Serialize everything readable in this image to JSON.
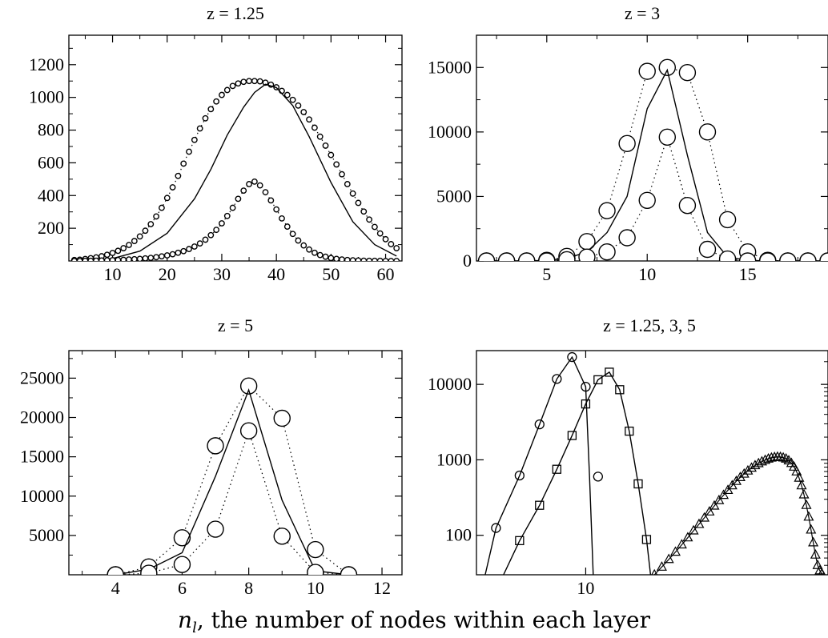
{
  "figure": {
    "xlabel_prefix": "n",
    "xlabel_sub": "l",
    "xlabel_rest": ", the number of nodes within each layer"
  },
  "chart_data": [
    {
      "type": "scatter",
      "title": "z = 1.25",
      "xlim": [
        2,
        63
      ],
      "ylim": [
        0,
        1380
      ],
      "xticks": [
        10,
        20,
        30,
        40,
        50,
        60
      ],
      "yticks": [
        200,
        400,
        600,
        800,
        1000,
        1200
      ],
      "yscale": "linear",
      "series": [
        {
          "style": "dotted-circles",
          "x": [
            3,
            4,
            5,
            6,
            7,
            8,
            9,
            10,
            11,
            12,
            13,
            14,
            15,
            16,
            17,
            18,
            19,
            20,
            21,
            22,
            23,
            24,
            25,
            26,
            27,
            28,
            29,
            30,
            31,
            32,
            33,
            34,
            35,
            36,
            37,
            38,
            39,
            40,
            41,
            42,
            43,
            44,
            45,
            46,
            47,
            48,
            49,
            50,
            51,
            52,
            53,
            54,
            55,
            56,
            57,
            58,
            59,
            60,
            61,
            62
          ],
          "y": [
            6,
            8,
            12,
            17,
            22,
            29,
            38,
            49,
            62,
            78,
            98,
            122,
            150,
            185,
            225,
            272,
            325,
            385,
            450,
            520,
            595,
            668,
            740,
            810,
            872,
            928,
            975,
            1015,
            1045,
            1070,
            1085,
            1095,
            1100,
            1100,
            1098,
            1090,
            1078,
            1062,
            1040,
            1015,
            985,
            950,
            910,
            865,
            815,
            760,
            705,
            648,
            590,
            530,
            470,
            412,
            355,
            302,
            253,
            208,
            168,
            133,
            103,
            78
          ]
        },
        {
          "style": "solid-line",
          "x": [
            3,
            6,
            10,
            15,
            20,
            25,
            28,
            31,
            34,
            36,
            38,
            40,
            43,
            46,
            50,
            54,
            58,
            62
          ],
          "y": [
            0,
            3,
            15,
            60,
            170,
            380,
            560,
            770,
            940,
            1030,
            1080,
            1060,
            950,
            760,
            480,
            240,
            100,
            30
          ]
        },
        {
          "style": "dotted-circles",
          "x": [
            3,
            4,
            5,
            6,
            7,
            8,
            9,
            10,
            11,
            12,
            13,
            14,
            15,
            16,
            17,
            18,
            19,
            20,
            21,
            22,
            23,
            24,
            25,
            26,
            27,
            28,
            29,
            30,
            31,
            32,
            33,
            34,
            35,
            36,
            37,
            38,
            39,
            40,
            41,
            42,
            43,
            44,
            45,
            46,
            47,
            48,
            49,
            50,
            51,
            52,
            53,
            54,
            55,
            56,
            57,
            58,
            59,
            60,
            61,
            62
          ],
          "y": [
            0,
            0,
            1,
            1,
            2,
            3,
            4,
            5,
            6,
            7,
            9,
            11,
            13,
            16,
            19,
            23,
            28,
            34,
            41,
            50,
            60,
            73,
            88,
            107,
            130,
            158,
            190,
            230,
            275,
            325,
            380,
            430,
            470,
            485,
            462,
            420,
            370,
            315,
            260,
            210,
            165,
            125,
            95,
            70,
            50,
            36,
            26,
            18,
            13,
            9,
            6,
            4,
            3,
            2,
            1,
            1,
            1,
            0,
            0,
            0
          ]
        }
      ]
    },
    {
      "type": "scatter",
      "title": "z = 3",
      "xlim": [
        1.5,
        19
      ],
      "ylim": [
        0,
        17500
      ],
      "xticks": [
        5,
        10,
        15
      ],
      "yticks": [
        0,
        5000,
        10000,
        15000
      ],
      "yscale": "linear",
      "series": [
        {
          "style": "dotted-big-circles",
          "x": [
            2,
            3,
            4,
            5,
            6,
            7,
            8,
            9,
            10,
            11,
            12,
            13,
            14,
            15,
            16,
            17,
            18,
            19
          ],
          "y": [
            0,
            0,
            0,
            50,
            350,
            1500,
            3900,
            9100,
            14700,
            15000,
            14600,
            10000,
            3200,
            700,
            50,
            0,
            0,
            0
          ]
        },
        {
          "style": "solid-line",
          "x": [
            2,
            3,
            4,
            5,
            6,
            7,
            8,
            9,
            10,
            11,
            12,
            13,
            14,
            15,
            16,
            17,
            18,
            19
          ],
          "y": [
            0,
            0,
            0,
            50,
            200,
            700,
            2200,
            5000,
            11800,
            14800,
            8200,
            2200,
            300,
            50,
            0,
            0,
            0,
            0
          ]
        },
        {
          "style": "dotted-big-circles",
          "x": [
            2,
            3,
            4,
            5,
            6,
            7,
            8,
            9,
            10,
            11,
            12,
            13,
            14,
            15,
            16,
            17,
            18,
            19
          ],
          "y": [
            0,
            0,
            0,
            0,
            100,
            300,
            700,
            1800,
            4700,
            9600,
            4300,
            900,
            150,
            0,
            0,
            0,
            0,
            0
          ]
        }
      ]
    },
    {
      "type": "scatter",
      "title": "z = 5",
      "xlim": [
        2.6,
        12.6
      ],
      "ylim": [
        0,
        28500
      ],
      "xticks": [
        4,
        6,
        8,
        10,
        12
      ],
      "yticks": [
        5000,
        10000,
        15000,
        20000,
        25000
      ],
      "yscale": "linear",
      "series": [
        {
          "style": "dotted-big-circles",
          "x": [
            4,
            5,
            6,
            7,
            8,
            9,
            10,
            11
          ],
          "y": [
            0,
            1000,
            4700,
            16400,
            24000,
            19900,
            3200,
            0
          ]
        },
        {
          "style": "solid-line",
          "x": [
            4,
            5,
            6,
            7,
            8,
            9,
            10,
            11
          ],
          "y": [
            0,
            700,
            2800,
            12500,
            23500,
            9500,
            500,
            0
          ]
        },
        {
          "style": "dotted-big-circles",
          "x": [
            4,
            5,
            6,
            7,
            8,
            9,
            10,
            11
          ],
          "y": [
            0,
            200,
            1300,
            5800,
            18300,
            4900,
            300,
            0
          ]
        }
      ]
    },
    {
      "type": "line",
      "title": "z = 1.25, 3, 5",
      "xlim": [
        4.3,
        65
      ],
      "ylim": [
        30,
        28000
      ],
      "xscale": "log",
      "yscale": "log",
      "xticks": [
        10
      ],
      "yticks": [
        100,
        1000,
        10000
      ],
      "series": [
        {
          "marker": "circle",
          "x": [
            5,
            6,
            7,
            8,
            9,
            10
          ],
          "y": [
            125,
            620,
            2950,
            11800,
            23000,
            9300
          ]
        },
        {
          "marker": "circle-line",
          "x": [
            4.6,
            5,
            6,
            7,
            8,
            9,
            10,
            10.3,
            10.6
          ],
          "y": [
            30,
            125,
            620,
            2950,
            11800,
            23000,
            9300,
            600,
            30
          ]
        },
        {
          "marker": "circle",
          "x": [
            11
          ],
          "y": [
            600
          ]
        },
        {
          "marker": "square",
          "x": [
            6,
            7,
            8,
            9,
            10,
            11,
            12,
            13,
            14,
            15
          ],
          "y": [
            85,
            250,
            750,
            2100,
            5500,
            11500,
            14500,
            8500,
            2400,
            480
          ]
        },
        {
          "marker": "square-line",
          "x": [
            5.3,
            6,
            7,
            8,
            9,
            10,
            11,
            12,
            13,
            14,
            15,
            16,
            16.5
          ],
          "y": [
            30,
            85,
            250,
            750,
            2100,
            5500,
            11500,
            14500,
            8500,
            2400,
            480,
            88,
            30
          ]
        },
        {
          "marker": "square",
          "x": [
            16
          ],
          "y": [
            88
          ]
        },
        {
          "marker": "triangle",
          "x": [
            17,
            18,
            19,
            20,
            21,
            22,
            23,
            24,
            25,
            26,
            27,
            28,
            29,
            30,
            31,
            32,
            33,
            34,
            35,
            36,
            37,
            38,
            39,
            40,
            41,
            42,
            43,
            44,
            45,
            46,
            47,
            48,
            49,
            50,
            51,
            52,
            53,
            54,
            55,
            56,
            57,
            58,
            59,
            60,
            61,
            62
          ],
          "y": [
            30,
            38,
            48,
            60,
            75,
            93,
            115,
            140,
            170,
            205,
            245,
            290,
            340,
            395,
            455,
            520,
            585,
            650,
            715,
            780,
            840,
            895,
            945,
            990,
            1030,
            1060,
            1080,
            1090,
            1085,
            1065,
            1030,
            975,
            900,
            805,
            695,
            575,
            455,
            345,
            250,
            175,
            118,
            80,
            55,
            40,
            34,
            31
          ]
        }
      ]
    }
  ]
}
